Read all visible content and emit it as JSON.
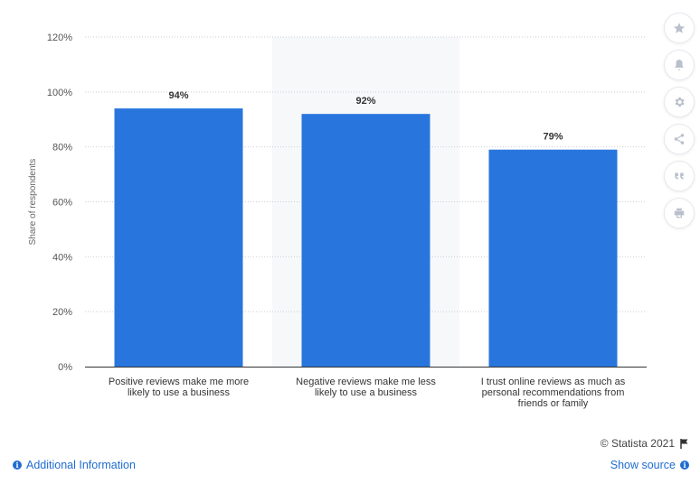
{
  "chart_data": {
    "type": "bar",
    "categories": [
      "Positive reviews make me more likely to use a business",
      "Negative reviews make me less likely to use a business",
      "I trust online reviews as much as personal recommendations from friends or family"
    ],
    "category_lines": [
      [
        "Positive reviews make me more",
        "likely to use a business"
      ],
      [
        "Negative reviews make me less",
        "likely to use a business"
      ],
      [
        "I trust online reviews as much as",
        "personal recommendations from",
        "friends or family"
      ]
    ],
    "values": [
      94,
      92,
      79
    ],
    "data_labels": [
      "94%",
      "92%",
      "79%"
    ],
    "ylabel": "Share of respondents",
    "ylim": [
      0,
      120
    ],
    "yticks": [
      0,
      20,
      40,
      60,
      80,
      100,
      120
    ],
    "ytick_labels": [
      "0%",
      "20%",
      "40%",
      "60%",
      "80%",
      "100%",
      "120%"
    ],
    "grid": true,
    "highlighted_category_index": 1,
    "colors": {
      "bar": "#2876dd",
      "grid": "#c9ced6",
      "highlight_band": "#f7f8fa"
    }
  },
  "toolbar": {
    "icons": [
      "star-icon",
      "bell-icon",
      "gear-icon",
      "share-icon",
      "quote-icon",
      "print-icon"
    ]
  },
  "footer": {
    "credit": "© Statista 2021",
    "additional_info": "Additional Information",
    "show_source": "Show source"
  }
}
